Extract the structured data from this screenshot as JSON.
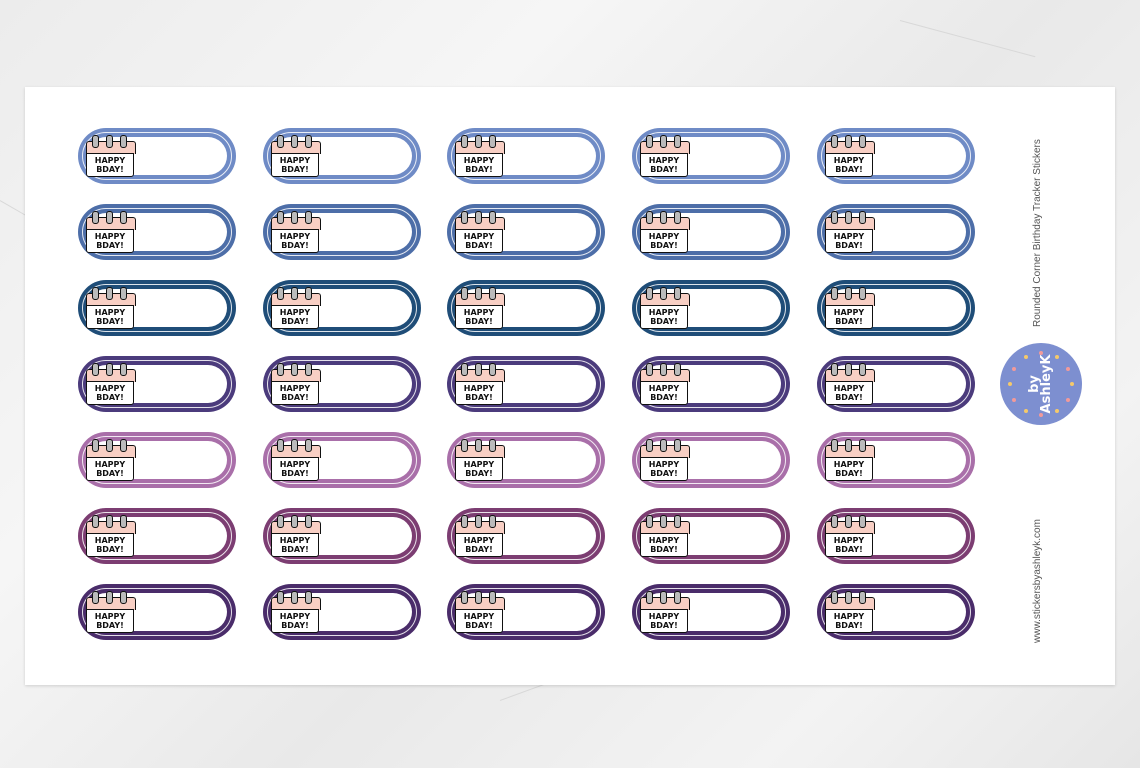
{
  "product_title": "Rounded Corner Birthday Tracker  Stickers",
  "website": "www.stickersbyashleyk.com",
  "logo": {
    "line1": "by",
    "line2": "AshleyK",
    "color": "#7d8fd0"
  },
  "sticker_text": {
    "line1": "HAPPY",
    "line2": "BDAY!"
  },
  "calendar_colors": {
    "header": "#f8cfc4",
    "rings": "#bbbbbb"
  },
  "rows": [
    {
      "color": "#6f8bc6",
      "stickers": 5
    },
    {
      "color": "#4d6ea8",
      "stickers": 5
    },
    {
      "color": "#1f4d78",
      "stickers": 5
    },
    {
      "color": "#4b3b7c",
      "stickers": 5
    },
    {
      "color": "#a96fa9",
      "stickers": 5
    },
    {
      "color": "#7c3d72",
      "stickers": 5
    },
    {
      "color": "#4a2c6a",
      "stickers": 5
    }
  ]
}
